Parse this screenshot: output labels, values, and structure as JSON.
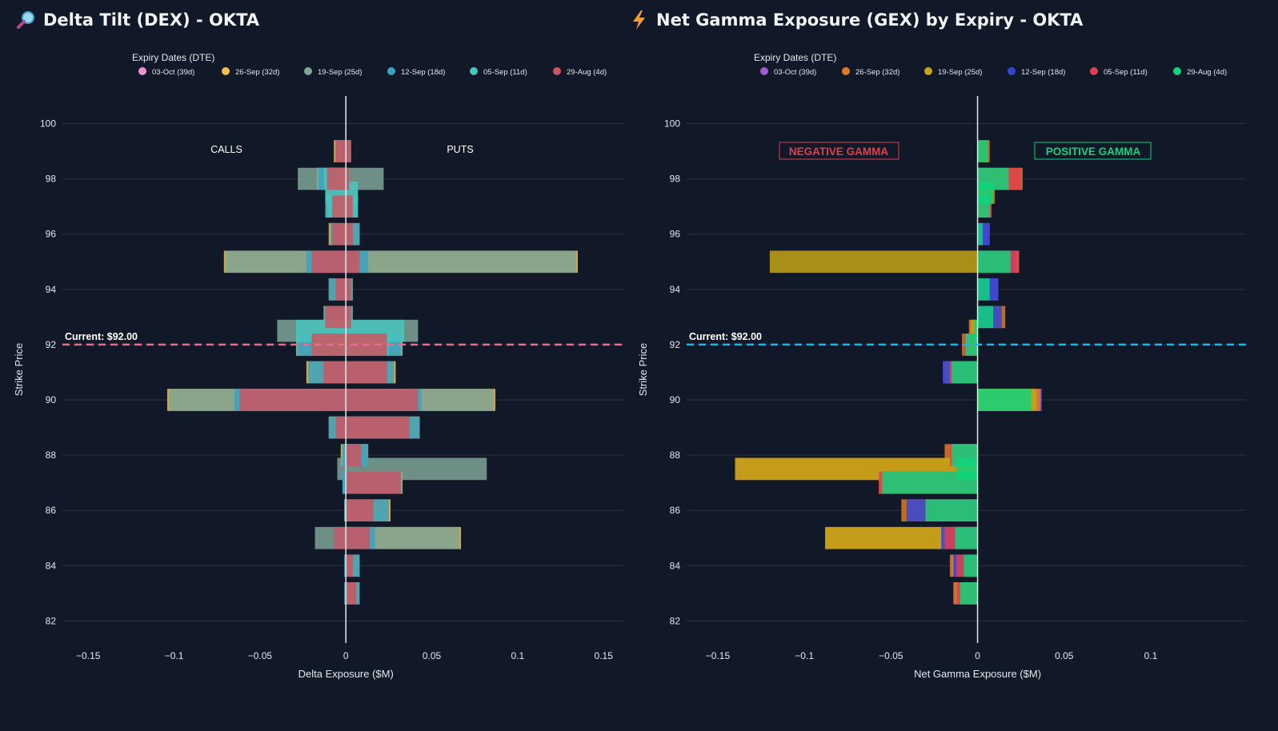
{
  "panels": {
    "dex_title": "Delta Tilt (DEX) - OKTA",
    "gex_title": "Net Gamma Exposure (GEX) by Expiry - OKTA",
    "dex_icon": "magnifier-icon",
    "gex_icon": "lightning-icon"
  },
  "chart_data": [
    {
      "type": "bar",
      "orientation": "horizontal",
      "barmode": "overlay",
      "title": "Delta Tilt (DEX) - OKTA",
      "xlabel": "Delta Exposure ($M)",
      "ylabel": "Strike Price",
      "legend_title": "Expiry Dates (DTE)",
      "legend_position": "top",
      "xlim": [
        -0.165,
        0.162
      ],
      "ylim": [
        81.2,
        101
      ],
      "xticks": [
        -0.15,
        -0.1,
        -0.05,
        0,
        0.05,
        0.1,
        0.15
      ],
      "xtick_labels": [
        "−0.15",
        "−0.1",
        "−0.05",
        "0",
        "0.05",
        "0.1",
        "0.15"
      ],
      "yticks": [
        82,
        84,
        86,
        88,
        90,
        92,
        94,
        96,
        98,
        100
      ],
      "grid": true,
      "annotations": {
        "calls": "CALLS",
        "puts": "PUTS",
        "current": "Current: $92.00"
      },
      "current_price": 92,
      "current_line_color": "#f06b8b",
      "strikes": [
        99,
        98,
        97.5,
        97,
        96,
        95,
        94,
        93,
        92.5,
        92,
        91,
        90,
        89,
        88,
        87.5,
        87,
        86,
        85,
        84,
        83
      ],
      "series": [
        {
          "name": "03-Oct (39d)",
          "color": "#f08fd6",
          "values": [
            [
              0,
              0
            ],
            [
              0,
              0
            ],
            [
              0,
              0
            ],
            [
              0,
              0
            ],
            [
              0,
              0
            ],
            [
              0,
              0
            ],
            [
              0,
              0
            ],
            [
              0,
              0
            ],
            [
              0,
              0
            ],
            [
              0,
              0
            ],
            [
              0,
              0
            ],
            [
              0,
              0
            ],
            [
              0,
              0
            ],
            [
              0,
              0
            ],
            [
              0,
              0
            ],
            [
              0,
              0
            ],
            [
              0,
              0
            ],
            [
              0,
              0
            ],
            [
              0,
              0
            ],
            [
              0,
              0
            ]
          ]
        },
        {
          "name": "26-Sep (32d)",
          "color": "#f3c04d",
          "values": [
            [
              -0.007,
              0.003
            ],
            [
              -0.017,
              0.002
            ],
            [
              0,
              0
            ],
            [
              -0.012,
              0.007
            ],
            [
              -0.01,
              0.008
            ],
            [
              -0.071,
              0.135
            ],
            [
              -0.01,
              0.004
            ],
            [
              -0.013,
              0.004
            ],
            [
              0,
              0
            ],
            [
              -0.029,
              0.033
            ],
            [
              -0.023,
              0.029
            ],
            [
              -0.104,
              0.087
            ],
            [
              -0.01,
              0.043
            ],
            [
              -0.003,
              0.013
            ],
            [
              0,
              0
            ],
            [
              -0.002,
              0.033
            ],
            [
              -0.001,
              0.026
            ],
            [
              0,
              0.067
            ],
            [
              0,
              0.008
            ],
            [
              0,
              0.008
            ]
          ]
        },
        {
          "name": "19-Sep (25d)",
          "color": "#7fa596",
          "values": [
            [
              0,
              0
            ],
            [
              -0.028,
              0.022
            ],
            [
              -0.012,
              0.007
            ],
            [
              0,
              0
            ],
            [
              0,
              0
            ],
            [
              -0.07,
              0.134
            ],
            [
              0,
              0
            ],
            [
              0,
              0
            ],
            [
              -0.04,
              0.042
            ],
            [
              -0.029,
              0.033
            ],
            [
              0,
              0
            ],
            [
              -0.103,
              0.086
            ],
            [
              0,
              0
            ],
            [
              -0.002,
              0.012
            ],
            [
              -0.005,
              0.082
            ],
            [
              -0.002,
              0.033
            ],
            [
              0,
              0
            ],
            [
              -0.018,
              0.066
            ],
            [
              0,
              0
            ],
            [
              0,
              0
            ]
          ]
        },
        {
          "name": "12-Sep (18d)",
          "color": "#3aa3c2",
          "values": [
            [
              -0.006,
              0.003
            ],
            [
              -0.016,
              0.002
            ],
            [
              0,
              0
            ],
            [
              -0.012,
              0.007
            ],
            [
              -0.009,
              0.008
            ],
            [
              -0.023,
              0.013
            ],
            [
              -0.01,
              0.004
            ],
            [
              -0.013,
              0.004
            ],
            [
              0,
              0
            ],
            [
              -0.028,
              0.032
            ],
            [
              -0.022,
              0.028
            ],
            [
              -0.065,
              0.044
            ],
            [
              -0.01,
              0.043
            ],
            [
              -0.002,
              0.013
            ],
            [
              0,
              0
            ],
            [
              -0.002,
              0.032
            ],
            [
              -0.001,
              0.025
            ],
            [
              -0.007,
              0.017
            ],
            [
              -0.001,
              0.008
            ],
            [
              -0.001,
              0.008
            ]
          ]
        },
        {
          "name": "05-Sep (11d)",
          "color": "#48c4bc",
          "values": [
            [
              0,
              0
            ],
            [
              -0.013,
              0.002
            ],
            [
              -0.012,
              0.007
            ],
            [
              -0.011,
              0.007
            ],
            [
              0,
              0
            ],
            [
              0,
              0
            ],
            [
              0,
              0
            ],
            [
              0,
              0
            ],
            [
              -0.029,
              0.034
            ],
            [
              -0.02,
              0.025
            ],
            [
              0,
              0
            ],
            [
              0,
              0
            ],
            [
              0,
              0
            ],
            [
              0,
              0
            ],
            [
              0,
              0
            ],
            [
              0,
              0
            ],
            [
              0,
              0
            ],
            [
              0,
              0
            ],
            [
              0,
              0
            ],
            [
              0,
              0
            ]
          ]
        },
        {
          "name": "29-Aug (4d)",
          "color": "#cc5560",
          "values": [
            [
              -0.006,
              0.003
            ],
            [
              -0.011,
              0.002
            ],
            [
              0,
              0
            ],
            [
              -0.008,
              0.004
            ],
            [
              -0.008,
              0.004
            ],
            [
              -0.02,
              0.008
            ],
            [
              -0.006,
              0.003
            ],
            [
              -0.012,
              0.003
            ],
            [
              0,
              0
            ],
            [
              -0.02,
              0.024
            ],
            [
              -0.013,
              0.024
            ],
            [
              -0.062,
              0.042
            ],
            [
              -0.006,
              0.037
            ],
            [
              0,
              0.009
            ],
            [
              0,
              0
            ],
            [
              0,
              0.032
            ],
            [
              0,
              0.016
            ],
            [
              -0.007,
              0.014
            ],
            [
              0,
              0.004
            ],
            [
              0,
              0.006
            ]
          ]
        }
      ]
    },
    {
      "type": "bar",
      "orientation": "horizontal",
      "barmode": "overlay",
      "title": "Net Gamma Exposure (GEX) by Expiry - OKTA",
      "xlabel": "Net Gamma Exposure ($M)",
      "ylabel": "Strike Price",
      "legend_title": "Expiry Dates (DTE)",
      "legend_position": "top",
      "xlim": [
        -0.168,
        0.155
      ],
      "ylim": [
        81.2,
        101
      ],
      "xticks": [
        -0.15,
        -0.1,
        -0.05,
        0,
        0.05,
        0.1
      ],
      "xtick_labels": [
        "−0.15",
        "−0.1",
        "−0.05",
        "0",
        "0.05",
        "0.1"
      ],
      "yticks": [
        82,
        84,
        86,
        88,
        90,
        92,
        94,
        96,
        98,
        100
      ],
      "grid": true,
      "annotations": {
        "negative": "NEGATIVE GAMMA",
        "positive": "POSITIVE GAMMA",
        "current": "Current: $92.00"
      },
      "current_price": 92,
      "current_line_color": "#1fb6f0",
      "strikes": [
        99,
        98,
        97.5,
        97,
        96,
        95,
        94,
        93,
        92.5,
        92,
        91,
        90,
        88,
        87.5,
        87,
        86,
        85,
        84,
        83
      ],
      "series": [
        {
          "name": "03-Oct (39d)",
          "color": "#a25ad6",
          "values": [
            0,
            0,
            0,
            0.007,
            0.007,
            0.022,
            0.012,
            0,
            0,
            0,
            -0.02,
            0.037,
            -0.016,
            0,
            -0.055,
            -0.04,
            -0.022,
            -0.015,
            -0.013
          ]
        },
        {
          "name": "26-Sep (32d)",
          "color": "#e07b22",
          "values": [
            0.007,
            0.026,
            0.01,
            0.008,
            0,
            0.024,
            0,
            0.016,
            -0.005,
            -0.009,
            -0.019,
            0.036,
            -0.019,
            -0.14,
            -0.057,
            -0.044,
            -0.088,
            -0.016,
            -0.014
          ]
        },
        {
          "name": "19-Sep (25d)",
          "color": "#c4a418",
          "values": [
            0,
            0,
            0.009,
            0,
            0,
            -0.12,
            0,
            0,
            -0.004,
            0,
            -0.016,
            0.034,
            0,
            -0.14,
            -0.056,
            0,
            -0.088,
            0,
            0
          ]
        },
        {
          "name": "12-Sep (18d)",
          "color": "#3246d6",
          "values": [
            0,
            0,
            0,
            0,
            0.007,
            0.022,
            0.012,
            0.014,
            0,
            0,
            -0.02,
            0,
            0,
            0,
            0,
            -0.041,
            -0.021,
            -0.014,
            0
          ]
        },
        {
          "name": "05-Sep (11d)",
          "color": "#e0404e",
          "values": [
            0,
            0.025,
            0,
            0.008,
            0,
            0.024,
            0,
            0,
            0,
            -0.008,
            -0.016,
            0,
            -0.016,
            0,
            -0.057,
            -0.03,
            -0.019,
            -0.012,
            -0.012
          ]
        },
        {
          "name": "29-Aug (4d)",
          "color": "#0fd47c",
          "values": [
            0.006,
            0.018,
            0.009,
            0.007,
            0.003,
            0.019,
            0.007,
            0.009,
            -0.002,
            -0.007,
            -0.015,
            0.031,
            -0.015,
            -0.012,
            -0.055,
            -0.03,
            -0.013,
            -0.008,
            -0.01
          ]
        }
      ]
    }
  ]
}
